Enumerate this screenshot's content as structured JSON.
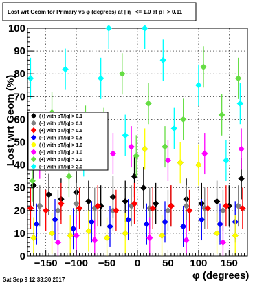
{
  "chart_data": {
    "type": "scatter",
    "title": "Lost wrt Geom for Primary vs φ (degrees) at | η | <= 1.0 at pT > 0.11",
    "xlabel": "φ (degrees)",
    "ylabel": "Lost wrt Geom (%)",
    "xlim": [
      -180,
      180
    ],
    "ylim": [
      0,
      100
    ],
    "x_ticks": [
      -150,
      -100,
      -50,
      0,
      50,
      100,
      150
    ],
    "x_tick_labels": [
      "−150",
      "−100",
      "−50",
      "0",
      "50",
      "100",
      "150"
    ],
    "y_ticks": [
      0,
      10,
      20,
      30,
      40,
      50,
      60,
      70,
      80,
      90,
      100
    ],
    "y_tick_labels": [
      "0",
      "10",
      "20",
      "30",
      "40",
      "50",
      "60",
      "70",
      "80",
      "90",
      "100"
    ],
    "grid": true,
    "legend_position": "left",
    "footer": "Sat Sep  9 12:33:30 2017",
    "series": [
      {
        "name": "(+) with pT/|q| > 0.1",
        "color": "#000000",
        "points": [
          [
            -170,
            31
          ],
          [
            -145,
            27
          ],
          [
            -125,
            25
          ],
          [
            -100,
            28
          ],
          [
            -80,
            24
          ],
          [
            -60,
            22
          ],
          [
            -40,
            26
          ],
          [
            -20,
            24
          ],
          [
            -5,
            35
          ],
          [
            10,
            30
          ],
          [
            30,
            23
          ],
          [
            55,
            22
          ],
          [
            80,
            25
          ],
          [
            105,
            23
          ],
          [
            130,
            24
          ],
          [
            150,
            22
          ],
          [
            170,
            34
          ]
        ]
      },
      {
        "name": "(−) with pT/|q| > 0.1",
        "color": "#808080",
        "points": [
          [
            -160,
            22
          ],
          [
            -130,
            20
          ],
          [
            -100,
            23
          ],
          [
            -70,
            21
          ],
          [
            -40,
            20
          ],
          [
            -10,
            22
          ],
          [
            20,
            21
          ],
          [
            50,
            20
          ],
          [
            80,
            22
          ],
          [
            110,
            21
          ],
          [
            140,
            20
          ],
          [
            165,
            22
          ]
        ]
      },
      {
        "name": "(+) with pT/|q| > 0.5",
        "color": "#ff0000",
        "points": [
          [
            -175,
            21
          ],
          [
            -150,
            20
          ],
          [
            -125,
            23
          ],
          [
            -95,
            21
          ],
          [
            -65,
            22
          ],
          [
            -35,
            20
          ],
          [
            -5,
            23
          ],
          [
            25,
            21
          ],
          [
            55,
            22
          ],
          [
            85,
            20
          ],
          [
            115,
            21
          ],
          [
            145,
            22
          ],
          [
            172,
            21
          ]
        ]
      },
      {
        "name": "(−) with pT/|q| > 0.5",
        "color": "#0000ff",
        "points": [
          [
            -165,
            14
          ],
          [
            -135,
            16
          ],
          [
            -105,
            12
          ],
          [
            -75,
            15
          ],
          [
            -45,
            13
          ],
          [
            -15,
            16
          ],
          [
            15,
            14
          ],
          [
            45,
            15
          ],
          [
            75,
            13
          ],
          [
            105,
            16
          ],
          [
            135,
            14
          ],
          [
            160,
            15
          ]
        ]
      },
      {
        "name": "(+) with pT/|q| > 1.0",
        "color": "#ffff00",
        "points": [
          [
            -170,
            8
          ],
          [
            -140,
            10
          ],
          [
            -110,
            9
          ],
          [
            -80,
            11
          ],
          [
            -50,
            8
          ],
          [
            -20,
            10
          ],
          [
            12,
            47
          ],
          [
            40,
            9
          ],
          [
            70,
            41
          ],
          [
            100,
            40
          ],
          [
            130,
            10
          ],
          [
            160,
            9
          ]
        ]
      },
      {
        "name": "(−) with pT/|q| > 1.0",
        "color": "#ff00ff",
        "points": [
          [
            -160,
            43
          ],
          [
            -130,
            6
          ],
          [
            -100,
            9
          ],
          [
            -70,
            7
          ],
          [
            -40,
            45
          ],
          [
            -10,
            48
          ],
          [
            20,
            8
          ],
          [
            50,
            42
          ],
          [
            80,
            7
          ],
          [
            110,
            45
          ],
          [
            140,
            6
          ],
          [
            170,
            47
          ]
        ]
      },
      {
        "name": "(+) with pT/|q| > 2.0",
        "color": "#66dd44",
        "points": [
          [
            -172,
            33
          ],
          [
            -140,
            63
          ],
          [
            -112,
            35
          ],
          [
            -85,
            57
          ],
          [
            -55,
            56
          ],
          [
            -25,
            80
          ],
          [
            -2,
            44
          ],
          [
            18,
            67
          ],
          [
            45,
            48
          ],
          [
            75,
            60
          ],
          [
            108,
            83
          ],
          [
            138,
            62
          ],
          [
            165,
            78
          ]
        ]
      },
      {
        "name": "(−) with pT/|q| > 2.0",
        "color": "#00ffff",
        "points": [
          [
            -175,
            78
          ],
          [
            -150,
            54
          ],
          [
            -118,
            82
          ],
          [
            -88,
            44
          ],
          [
            -60,
            78
          ],
          [
            -47,
            100
          ],
          [
            -20,
            53
          ],
          [
            12,
            100
          ],
          [
            42,
            86
          ],
          [
            60,
            56
          ],
          [
            100,
            75
          ],
          [
            145,
            42
          ],
          [
            168,
            67
          ]
        ]
      }
    ]
  }
}
